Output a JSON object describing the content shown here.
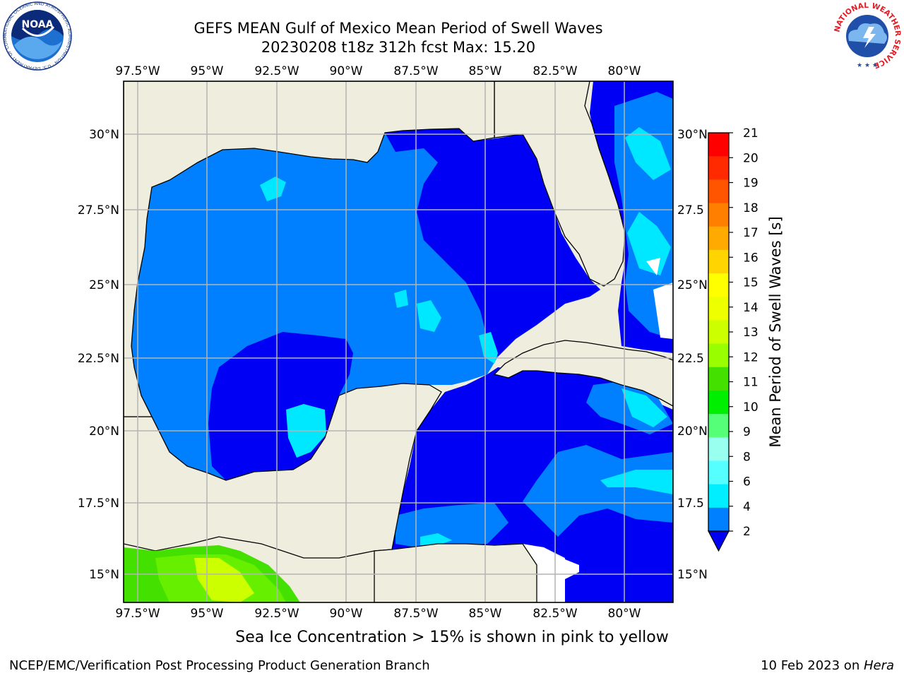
{
  "title": {
    "line1": "GEFS MEAN Gulf of Mexico Mean Period of Swell Waves",
    "line2": "20230208 t18z 312h fcst   Max: 15.20"
  },
  "map": {
    "lon_ticks": [
      "97.5°W",
      "95°W",
      "92.5°W",
      "90°W",
      "87.5°W",
      "85°W",
      "82.5°W",
      "80°W"
    ],
    "lat_ticks_left": [
      "30°N",
      "27.5°N",
      "25°N",
      "22.5°N",
      "20°N",
      "17.5°N",
      "15°N"
    ],
    "lat_ticks_right": [
      "30°N",
      "27.5",
      "25°N",
      "22.5",
      "20°N",
      "17.5",
      "15°N"
    ],
    "colors": {
      "land": "#efedde",
      "water_2_4": "#0080ff",
      "water_lt2": "#0000f5",
      "water_4_6": "#00e8ff",
      "grid": "#b4b4b4"
    }
  },
  "colorbar": {
    "label": "Mean Period of Swell Waves [s]",
    "ticks": [
      "21",
      "20",
      "19",
      "18",
      "17",
      "16",
      "15",
      "14",
      "13",
      "12",
      "11",
      "10",
      "9",
      "8",
      "6",
      "4",
      "2"
    ],
    "colors": [
      "#ff0000",
      "#ff2a00",
      "#ff5500",
      "#ff8000",
      "#ffaa00",
      "#ffd400",
      "#ffff00",
      "#eeff00",
      "#ccff00",
      "#99ff00",
      "#44e000",
      "#00ee00",
      "#55ff77",
      "#99ffee",
      "#55ffff",
      "#00eeff",
      "#0080ff"
    ],
    "extend_color": "#0000f5"
  },
  "note": "Sea Ice Concentration > 15% is shown in pink to yellow",
  "footer": {
    "left": "NCEP/EMC/Verification Post Processing Product Generation Branch",
    "right_date": "10 Feb 2023 on ",
    "right_host": "Hera"
  },
  "logos": {
    "noaa_text": "NOAA",
    "noaa_ring": "NATIONAL OCEANIC AND ATMOSPHERIC ADMINISTRATION · U.S. DEPARTMENT OF COMMERCE",
    "nws_ring": "NATIONAL WEATHER SERVICE"
  }
}
